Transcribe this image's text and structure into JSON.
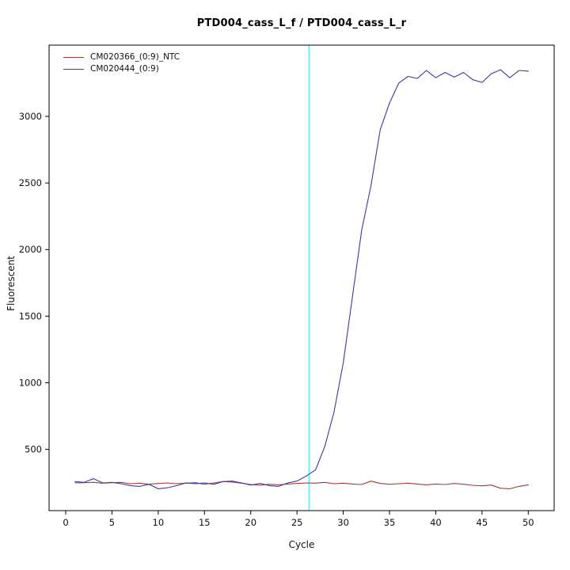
{
  "title": "PTD004_cass_L_f / PTD004_cass_L_r",
  "xlabel": "Cycle",
  "ylabel": "Fluorescent",
  "legend": [
    {
      "label": "CM020366_(0:9)_NTC",
      "color": "#a33a3a"
    },
    {
      "label": "CM020444_(0:9)",
      "color": "#3a3aa0"
    }
  ],
  "chart_data": {
    "type": "line",
    "title": "PTD004_cass_L_f / PTD004_cass_L_r",
    "xlabel": "Cycle",
    "ylabel": "Fluorescent",
    "xlim": [
      -1.8,
      52.8
    ],
    "ylim": [
      40,
      3535
    ],
    "xticks": [
      0,
      5,
      10,
      15,
      20,
      25,
      30,
      35,
      40,
      45,
      50
    ],
    "yticks": [
      500,
      1000,
      1500,
      2000,
      2500,
      3000
    ],
    "grid": false,
    "legend_position": "top-left",
    "threshold_line": {
      "x": 26.3,
      "color": "#55e8e8"
    },
    "x": [
      1,
      2,
      3,
      4,
      5,
      6,
      7,
      8,
      9,
      10,
      11,
      12,
      13,
      14,
      15,
      16,
      17,
      18,
      19,
      20,
      21,
      22,
      23,
      24,
      25,
      26,
      27,
      28,
      29,
      30,
      31,
      32,
      33,
      34,
      35,
      36,
      37,
      38,
      39,
      40,
      41,
      42,
      43,
      44,
      45,
      46,
      47,
      48,
      49,
      50
    ],
    "series": [
      {
        "name": "CM020366_(0:9)_NTC",
        "color": "#a33a3a",
        "values": [
          248,
          250,
          252,
          246,
          250,
          252,
          242,
          246,
          238,
          244,
          248,
          242,
          246,
          250,
          238,
          248,
          258,
          254,
          246,
          236,
          230,
          238,
          234,
          240,
          244,
          248,
          246,
          252,
          242,
          246,
          240,
          236,
          262,
          244,
          238,
          242,
          246,
          240,
          234,
          240,
          236,
          244,
          238,
          230,
          226,
          232,
          208,
          204,
          222,
          234
        ]
      },
      {
        "name": "CM020444_(0:9)",
        "color": "#3a3aa0",
        "values": [
          258,
          252,
          280,
          248,
          252,
          242,
          228,
          222,
          238,
          204,
          212,
          228,
          248,
          242,
          248,
          238,
          258,
          262,
          248,
          232,
          244,
          228,
          222,
          248,
          262,
          300,
          345,
          520,
          780,
          1150,
          1650,
          2150,
          2480,
          2900,
          3100,
          3250,
          3300,
          3285,
          3345,
          3290,
          3330,
          3295,
          3330,
          3275,
          3255,
          3320,
          3350,
          3290,
          3345,
          3340
        ]
      }
    ]
  }
}
